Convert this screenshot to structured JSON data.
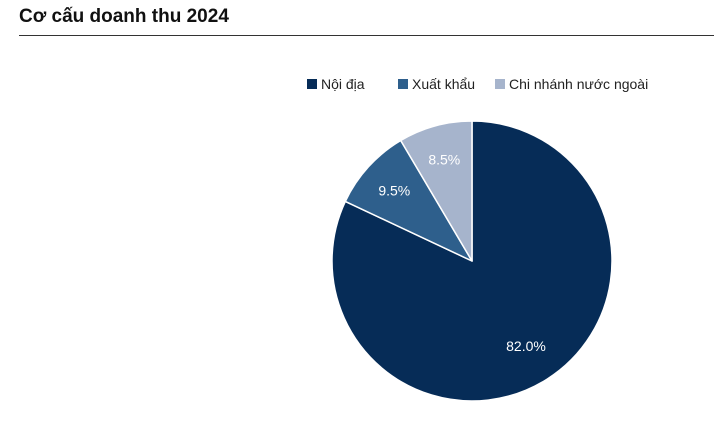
{
  "title": "Cơ cấu doanh thu 2024",
  "chart_data": {
    "type": "pie",
    "title": "Cơ cấu doanh thu 2024",
    "categories": [
      "Nội địa",
      "Xuất khẩu",
      "Chi nhánh nước ngoài"
    ],
    "values": [
      82.0,
      9.5,
      8.5
    ],
    "labels": [
      "82.0%",
      "9.5%",
      "8.5%"
    ],
    "colors": [
      "#062c57",
      "#2e5f8c",
      "#a6b4cc"
    ],
    "label_colors": [
      "#ffffff",
      "#ffffff",
      "#ffffff"
    ],
    "legend_position": "top",
    "start_angle": "12 o'clock",
    "direction": "clockwise"
  }
}
